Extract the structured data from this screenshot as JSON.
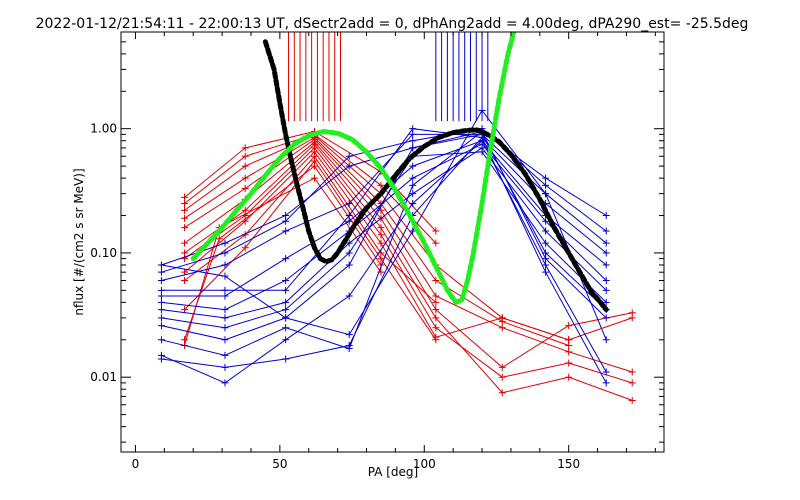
{
  "chart_data": {
    "type": "line",
    "title": "2022-01-12/21:54:11 - 22:00:13 UT, dSectr2add = 0, dPhAng2add = 4.00deg, dPA290_est= -25.5deg",
    "xlabel": "PA [deg]",
    "ylabel": "nflux [#/(cm2 s sr MeV)]",
    "xlim": [
      -5,
      183
    ],
    "ylim": [
      0.0025,
      6.0
    ],
    "yscale": "log",
    "grid": false,
    "x_ticks": [
      0,
      50,
      100,
      150
    ],
    "x_tick_labels": [
      "0",
      "50",
      "100",
      "150"
    ],
    "y_ticks": [
      0.01,
      0.1,
      1.0
    ],
    "y_tick_labels": [
      "0.01",
      "0.10",
      "1.00"
    ],
    "colors": {
      "red": "#dd0000",
      "blue": "#0000cc",
      "black": "#000000",
      "green": "#22ee22"
    },
    "marker_lines": {
      "red": [
        53,
        55,
        57,
        59,
        61,
        63,
        65,
        67,
        69,
        71
      ],
      "blue": [
        104,
        106,
        108,
        110,
        112,
        114,
        116,
        118,
        120,
        122
      ],
      "y_bottom": 1.15,
      "y_top": 6.0
    },
    "series": [
      {
        "color": "red",
        "x": [
          17,
          38,
          62,
          85,
          104
        ],
        "y": [
          0.28,
          0.7,
          0.95,
          0.45,
          0.15
        ]
      },
      {
        "color": "red",
        "x": [
          17,
          38,
          62,
          85,
          104
        ],
        "y": [
          0.25,
          0.6,
          0.9,
          0.35,
          0.12
        ]
      },
      {
        "color": "red",
        "x": [
          17,
          38,
          62,
          85,
          104,
          127,
          150
        ],
        "y": [
          0.22,
          0.5,
          0.88,
          0.3,
          0.08,
          0.03,
          0.02
        ]
      },
      {
        "color": "red",
        "x": [
          17,
          38,
          62,
          85,
          104,
          127,
          150
        ],
        "y": [
          0.19,
          0.4,
          0.85,
          0.25,
          0.06,
          0.028,
          0.018
        ]
      },
      {
        "color": "red",
        "x": [
          17,
          38,
          62,
          85,
          104,
          127,
          150,
          172
        ],
        "y": [
          0.16,
          0.33,
          0.82,
          0.22,
          0.045,
          0.025,
          0.016,
          0.011
        ]
      },
      {
        "color": "red",
        "x": [
          17,
          38,
          62,
          85,
          104,
          127,
          150,
          172
        ],
        "y": [
          0.12,
          0.27,
          0.78,
          0.19,
          0.035,
          0.012,
          0.026,
          0.033
        ]
      },
      {
        "color": "red",
        "x": [
          17,
          38,
          62,
          85,
          104,
          127,
          150,
          172
        ],
        "y": [
          0.1,
          0.22,
          0.75,
          0.16,
          0.03,
          0.0075,
          0.01,
          0.0065
        ]
      },
      {
        "color": "red",
        "x": [
          17,
          38,
          62,
          85,
          104,
          127,
          150,
          172
        ],
        "y": [
          0.09,
          0.2,
          0.7,
          0.14,
          0.025,
          0.01,
          0.013,
          0.009
        ]
      },
      {
        "color": "red",
        "x": [
          17,
          38,
          62,
          85,
          104,
          127,
          150,
          172
        ],
        "y": [
          0.07,
          0.18,
          0.65,
          0.12,
          0.021,
          0.03,
          0.02,
          0.03
        ]
      },
      {
        "color": "red",
        "x": [
          17,
          38,
          62,
          85,
          104
        ],
        "y": [
          0.06,
          0.14,
          0.6,
          0.1,
          0.04
        ]
      },
      {
        "color": "red",
        "x": [
          17,
          38,
          62,
          85,
          104
        ],
        "y": [
          0.035,
          0.11,
          0.55,
          0.09,
          0.02
        ]
      },
      {
        "color": "red",
        "x": [
          17,
          29,
          62,
          85
        ],
        "y": [
          0.02,
          0.13,
          0.5,
          0.08
        ]
      },
      {
        "color": "red",
        "x": [
          17,
          29,
          62,
          85
        ],
        "y": [
          0.018,
          0.16,
          0.4,
          0.07
        ]
      },
      {
        "color": "blue",
        "x": [
          9,
          31,
          52,
          74,
          96,
          120,
          142,
          163
        ],
        "y": [
          0.08,
          0.12,
          0.2,
          0.5,
          0.7,
          0.95,
          0.4,
          0.2
        ]
      },
      {
        "color": "blue",
        "x": [
          9,
          31,
          52,
          74,
          96,
          120,
          142,
          163
        ],
        "y": [
          0.07,
          0.1,
          0.18,
          0.6,
          0.8,
          1.0,
          0.35,
          0.15
        ]
      },
      {
        "color": "blue",
        "x": [
          9,
          31,
          52,
          74,
          96,
          120,
          142,
          163
        ],
        "y": [
          0.06,
          0.08,
          0.15,
          0.25,
          0.9,
          0.9,
          0.3,
          0.12
        ]
      },
      {
        "color": "blue",
        "x": [
          9,
          31,
          52,
          74,
          96,
          120,
          142,
          163
        ],
        "y": [
          0.05,
          0.05,
          0.05,
          0.2,
          1.0,
          0.85,
          0.25,
          0.1
        ]
      },
      {
        "color": "blue",
        "x": [
          9,
          31,
          52,
          74,
          96,
          120,
          142,
          163
        ],
        "y": [
          0.045,
          0.045,
          0.09,
          0.18,
          0.5,
          0.8,
          0.2,
          0.08
        ]
      },
      {
        "color": "blue",
        "x": [
          9,
          31,
          52,
          74,
          96,
          120,
          142,
          163
        ],
        "y": [
          0.04,
          0.035,
          0.06,
          0.15,
          0.4,
          0.75,
          0.18,
          0.06
        ]
      },
      {
        "color": "blue",
        "x": [
          9,
          31,
          52,
          74,
          96,
          120,
          142,
          163
        ],
        "y": [
          0.035,
          0.03,
          0.04,
          0.12,
          0.3,
          0.7,
          0.15,
          0.05
        ]
      },
      {
        "color": "blue",
        "x": [
          9,
          31,
          52,
          74,
          96,
          120,
          142,
          163
        ],
        "y": [
          0.03,
          0.025,
          0.035,
          0.1,
          0.6,
          0.65,
          0.12,
          0.04
        ]
      },
      {
        "color": "blue",
        "x": [
          9,
          31,
          52,
          74,
          96,
          120,
          142,
          163
        ],
        "y": [
          0.026,
          0.02,
          0.03,
          0.08,
          0.7,
          0.9,
          0.1,
          0.035
        ]
      },
      {
        "color": "blue",
        "x": [
          9,
          31,
          52,
          74,
          96,
          120,
          142,
          163
        ],
        "y": [
          0.02,
          0.015,
          0.025,
          0.017,
          0.35,
          0.95,
          0.09,
          0.03
        ]
      },
      {
        "color": "blue",
        "x": [
          9,
          31,
          52,
          74,
          96,
          120,
          142,
          163
        ],
        "y": [
          0.015,
          0.009,
          0.02,
          0.045,
          0.25,
          0.8,
          0.08,
          0.011
        ]
      },
      {
        "color": "blue",
        "x": [
          9,
          31,
          52,
          74,
          96,
          120,
          142,
          163
        ],
        "y": [
          0.014,
          0.012,
          0.014,
          0.018,
          0.2,
          0.85,
          0.07,
          0.009
        ]
      },
      {
        "color": "blue",
        "x": [
          9,
          31,
          52,
          74,
          96,
          120,
          142,
          163
        ],
        "y": [
          0.08,
          0.065,
          0.03,
          0.022,
          0.15,
          1.4,
          0.3,
          0.02
        ]
      }
    ],
    "fits": [
      {
        "color": "black",
        "x": [
          45,
          48,
          50,
          52,
          54,
          56,
          58,
          60,
          62,
          64,
          66,
          68,
          70,
          73,
          76,
          80,
          85,
          90,
          95,
          100,
          105,
          110,
          115,
          118,
          120,
          123,
          126,
          130,
          135,
          140,
          145,
          150,
          155,
          158,
          161,
          163
        ],
        "y": [
          5.0,
          3.0,
          1.6,
          0.9,
          0.55,
          0.35,
          0.23,
          0.15,
          0.11,
          0.09,
          0.085,
          0.088,
          0.1,
          0.13,
          0.17,
          0.23,
          0.3,
          0.42,
          0.58,
          0.72,
          0.85,
          0.93,
          0.97,
          0.98,
          0.95,
          0.87,
          0.78,
          0.62,
          0.43,
          0.27,
          0.16,
          0.1,
          0.063,
          0.048,
          0.04,
          0.035
        ]
      },
      {
        "color": "green",
        "x": [
          20,
          25,
          30,
          35,
          40,
          45,
          50,
          55,
          60,
          65,
          70,
          75,
          80,
          85,
          90,
          95,
          100,
          105,
          108,
          111,
          113,
          115,
          117,
          120,
          123,
          126,
          129,
          131
        ],
        "y": [
          0.09,
          0.12,
          0.16,
          0.22,
          0.3,
          0.42,
          0.58,
          0.75,
          0.88,
          0.95,
          0.92,
          0.82,
          0.65,
          0.48,
          0.32,
          0.2,
          0.12,
          0.07,
          0.05,
          0.04,
          0.042,
          0.06,
          0.1,
          0.25,
          0.7,
          1.8,
          4.0,
          6.0
        ]
      }
    ]
  }
}
